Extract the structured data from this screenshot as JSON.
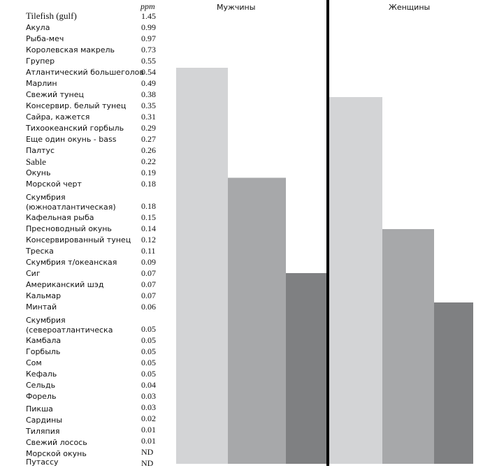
{
  "table": {
    "unit_header": "ppm",
    "rows": [
      {
        "name": "Tilefish (gulf)",
        "value": "1.45"
      },
      {
        "name": "Акула",
        "value": "0.99"
      },
      {
        "name": "Рыба-меч",
        "value": "0.97"
      },
      {
        "name": "Королевская макрель",
        "value": "0.73"
      },
      {
        "name": "Групер",
        "value": "0.55"
      },
      {
        "name": "Атлантический большеголов",
        "value": "0.54"
      },
      {
        "name": "Марлин",
        "value": "0.49"
      },
      {
        "name": "Свежий тунец",
        "value": "0.38"
      },
      {
        "name": "Консервир. белый тунец",
        "value": "0.35"
      },
      {
        "name": "Сайра, кажется",
        "value": "0.31"
      },
      {
        "name": "Тихоокеанский горбыль",
        "value": "0.29"
      },
      {
        "name": "Еще один окунь - bass",
        "value": "0.27"
      },
      {
        "name": "Палтус",
        "value": "0.26"
      },
      {
        "name": "Sable",
        "value": "0.22"
      },
      {
        "name": "Окунь",
        "value": "0.19"
      },
      {
        "name": "Морской черт",
        "value": "0.18"
      },
      {
        "name": "Скумбрия (южноатлантическая)",
        "value": "0.18"
      },
      {
        "name": "Кафельная рыба",
        "value": "0.15"
      },
      {
        "name": "Пресноводный окунь",
        "value": "0.14"
      },
      {
        "name": "Консервированный тунец",
        "value": "0.12"
      },
      {
        "name": "Треска",
        "value": "0.11"
      },
      {
        "name": "Скумбрия т/океанская",
        "value": "0.09"
      },
      {
        "name": "Сиг",
        "value": "0.07"
      },
      {
        "name": "Американский шэд",
        "value": "0.07"
      },
      {
        "name": "Кальмар",
        "value": "0.07"
      },
      {
        "name": "Минтай",
        "value": "0.06"
      },
      {
        "name": "Скумбрия (североатлантическа",
        "value": "0.05"
      },
      {
        "name": "Камбала",
        "value": "0.05"
      },
      {
        "name": "Горбыль",
        "value": "0.05"
      },
      {
        "name": "Сом",
        "value": "0.05"
      },
      {
        "name": "Кефаль",
        "value": "0.05"
      },
      {
        "name": "Сельдь",
        "value": "0.04"
      },
      {
        "name": "Форель",
        "value": "0.03"
      },
      {
        "name": "Пикша",
        "value": "0.03"
      },
      {
        "name": "Сардины",
        "value": "0.02"
      },
      {
        "name": "Тиляпия",
        "value": "0.01"
      },
      {
        "name": "Свежий лосось",
        "value": "0.01"
      },
      {
        "name": "Морской окунь",
        "value": "ND"
      },
      {
        "name": "Путассу",
        "value": "ND"
      }
    ]
  },
  "chart_data": {
    "type": "bar",
    "categories": [
      "Мужчины",
      "Женщины"
    ],
    "series": [
      {
        "name": "band-1",
        "color": "#d3d4d6",
        "values": [
          0.54,
          0.5
        ]
      },
      {
        "name": "band-2",
        "color": "#a7a8aa",
        "values": [
          0.39,
          0.32
        ]
      },
      {
        "name": "band-3",
        "color": "#7f8082",
        "values": [
          0.26,
          0.22
        ]
      }
    ],
    "ylim": [
      0,
      0.6
    ],
    "title": "",
    "xlabel": "",
    "ylabel": ""
  }
}
